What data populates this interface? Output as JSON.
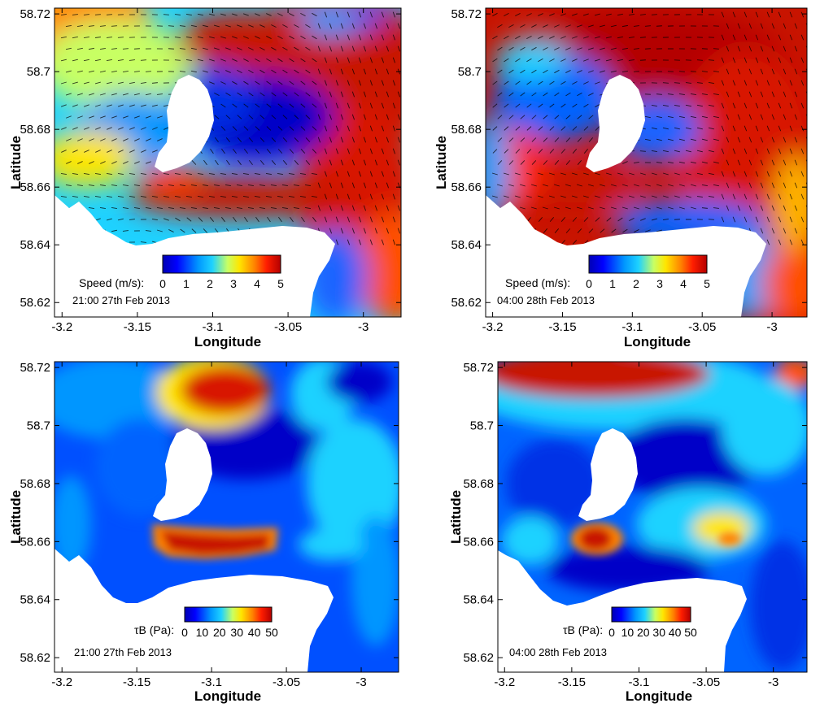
{
  "chart_data": [
    {
      "type": "heatmap",
      "panel": "top-left",
      "quantity": "current speed with velocity vectors",
      "timestamp": "21:00 27th Feb 2013",
      "xlabel": "Longitude",
      "ylabel": "Latitude",
      "xlim": [
        -3.205,
        -2.975
      ],
      "ylim": [
        58.615,
        58.722
      ],
      "xticks": [
        "-3.2",
        "-3.15",
        "-3.1",
        "-3.05",
        "-3"
      ],
      "yticks": [
        "58.72",
        "58.7",
        "58.68",
        "58.66",
        "58.64",
        "58.62"
      ],
      "colorbar": {
        "label": "Speed (m/s):",
        "min": 0,
        "max": 5,
        "ticks": [
          "0",
          "1",
          "2",
          "3",
          "4",
          "5"
        ]
      },
      "vectors": true
    },
    {
      "type": "heatmap",
      "panel": "top-right",
      "quantity": "current speed with velocity vectors",
      "timestamp": "04:00 28th Feb 2013",
      "xlabel": "Longitude",
      "ylabel": "Latitude",
      "xlim": [
        -3.205,
        -2.975
      ],
      "ylim": [
        58.615,
        58.722
      ],
      "xticks": [
        "-3.2",
        "-3.15",
        "-3.1",
        "-3.05",
        "-3"
      ],
      "yticks": [
        "58.72",
        "58.7",
        "58.68",
        "58.66",
        "58.64",
        "58.62"
      ],
      "colorbar": {
        "label": "Speed (m/s):",
        "min": 0,
        "max": 5,
        "ticks": [
          "0",
          "1",
          "2",
          "3",
          "4",
          "5"
        ]
      },
      "vectors": true
    },
    {
      "type": "heatmap",
      "panel": "bottom-left",
      "quantity": "bed shear stress",
      "timestamp": "21:00 27th Feb 2013",
      "xlabel": "Longitude",
      "ylabel": "Latitude",
      "xlim": [
        -3.205,
        -2.975
      ],
      "ylim": [
        58.615,
        58.722
      ],
      "xticks": [
        "-3.2",
        "-3.15",
        "-3.1",
        "-3.05",
        "-3"
      ],
      "yticks": [
        "58.72",
        "58.7",
        "58.68",
        "58.66",
        "58.64",
        "58.62"
      ],
      "colorbar": {
        "label": "τB (Pa):",
        "min": 0,
        "max": 50,
        "ticks": [
          "0",
          "10",
          "20",
          "30",
          "40",
          "50"
        ]
      },
      "vectors": false
    },
    {
      "type": "heatmap",
      "panel": "bottom-right",
      "quantity": "bed shear stress",
      "timestamp": "04:00 28th Feb 2013",
      "xlabel": "Longitude",
      "ylabel": "Latitude",
      "xlim": [
        -3.205,
        -2.975
      ],
      "ylim": [
        58.615,
        58.722
      ],
      "xticks": [
        "-3.2",
        "-3.15",
        "-3.1",
        "-3.05",
        "-3"
      ],
      "yticks": [
        "58.72",
        "58.7",
        "58.68",
        "58.66",
        "58.64",
        "58.62"
      ],
      "colorbar": {
        "label": "τB (Pa):",
        "min": 0,
        "max": 50,
        "ticks": [
          "0",
          "10",
          "20",
          "30",
          "40",
          "50"
        ]
      },
      "vectors": false
    }
  ],
  "colors": {
    "low": "#0000b4",
    "mid": "#1ed2ff",
    "high": "#b40000",
    "land": "#ffffff",
    "vector": "#000000"
  }
}
